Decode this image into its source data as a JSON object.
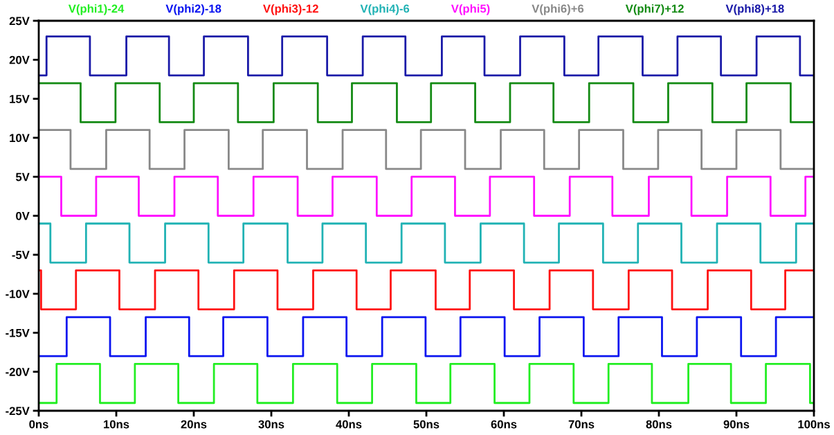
{
  "chart_data": {
    "type": "step",
    "legend": "top",
    "grid": false,
    "xlim": [
      0,
      100
    ],
    "ylim": [
      -25,
      25
    ],
    "xticks": [
      {
        "value": 0,
        "label": "0ns"
      },
      {
        "value": 10,
        "label": "10ns"
      },
      {
        "value": 20,
        "label": "20ns"
      },
      {
        "value": 30,
        "label": "30ns"
      },
      {
        "value": 40,
        "label": "40ns"
      },
      {
        "value": 50,
        "label": "50ns"
      },
      {
        "value": 60,
        "label": "60ns"
      },
      {
        "value": 70,
        "label": "70ns"
      },
      {
        "value": 80,
        "label": "80ns"
      },
      {
        "value": 90,
        "label": "90ns"
      },
      {
        "value": 100,
        "label": "100ns"
      }
    ],
    "yticks": [
      {
        "value": 25,
        "label": "25V"
      },
      {
        "value": 20,
        "label": "20V"
      },
      {
        "value": 15,
        "label": "15V"
      },
      {
        "value": 10,
        "label": "10V"
      },
      {
        "value": 5,
        "label": "5V"
      },
      {
        "value": 0,
        "label": "0V"
      },
      {
        "value": -5,
        "label": "-5V"
      },
      {
        "value": -10,
        "label": "-10V"
      },
      {
        "value": -15,
        "label": "-15V"
      },
      {
        "value": -20,
        "label": "-20V"
      },
      {
        "value": -25,
        "label": "-25V"
      }
    ],
    "series": [
      {
        "name": "V(phi1)-24",
        "color": "#22ee22",
        "x": [
          0,
          2.3,
          7.9,
          12.4,
          18.0,
          22.6,
          28.2,
          32.8,
          38.5,
          43.0,
          48.7,
          53.1,
          58.8,
          63.3,
          69.0,
          73.5,
          79.1,
          83.8,
          89.3,
          93.8,
          99.5,
          100
        ],
        "values": [
          -24,
          -19,
          -24,
          -19,
          -24,
          -19,
          -24,
          -19,
          -24,
          -19,
          -24,
          -19,
          -24,
          -19,
          -24,
          -19,
          -24,
          -19,
          -24,
          -19,
          -24,
          -24
        ]
      },
      {
        "name": "V(phi2)-18",
        "color": "#0a14f0",
        "x": [
          0,
          3.6,
          9.2,
          13.8,
          19.4,
          23.8,
          29.5,
          34.1,
          39.7,
          44.3,
          49.9,
          54.4,
          60.1,
          64.6,
          70.3,
          74.8,
          80.4,
          84.9,
          90.6,
          95.1,
          100
        ],
        "values": [
          -18,
          -13,
          -18,
          -13,
          -18,
          -13,
          -18,
          -13,
          -18,
          -13,
          -18,
          -13,
          -18,
          -13,
          -18,
          -13,
          -18,
          -13,
          -18,
          -13,
          -13
        ]
      },
      {
        "name": "V(phi3)-12",
        "color": "#ff1010",
        "x": [
          0,
          0.3,
          4.8,
          10.4,
          15.0,
          20.6,
          25.2,
          30.8,
          35.4,
          41.0,
          45.4,
          51.2,
          55.6,
          61.3,
          65.9,
          71.5,
          76.1,
          81.7,
          86.3,
          91.9,
          96.3,
          100
        ],
        "values": [
          -7,
          -12,
          -7,
          -12,
          -7,
          -12,
          -7,
          -12,
          -7,
          -12,
          -7,
          -12,
          -7,
          -12,
          -7,
          -12,
          -7,
          -12,
          -7,
          -12,
          -7,
          -7
        ]
      },
      {
        "name": "V(phi4)-6",
        "color": "#20b2b4",
        "x": [
          0,
          1.5,
          6.1,
          11.7,
          16.3,
          21.9,
          26.4,
          32.1,
          36.6,
          42.2,
          46.8,
          52.4,
          57.0,
          62.6,
          67.1,
          72.8,
          77.3,
          82.9,
          87.5,
          93.1,
          97.7,
          100
        ],
        "values": [
          -1,
          -6,
          -1,
          -6,
          -1,
          -6,
          -1,
          -6,
          -1,
          -6,
          -1,
          -6,
          -1,
          -6,
          -1,
          -6,
          -1,
          -6,
          -1,
          -6,
          -1,
          -1
        ]
      },
      {
        "name": "V(phi5)",
        "color": "#ff10ff",
        "x": [
          0,
          2.9,
          7.4,
          12.9,
          17.5,
          23.1,
          27.7,
          33.4,
          37.9,
          43.6,
          48.1,
          53.7,
          58.2,
          63.9,
          68.5,
          74.0,
          78.7,
          84.2,
          88.8,
          94.4,
          98.9,
          100
        ],
        "values": [
          5,
          0,
          5,
          0,
          5,
          0,
          5,
          0,
          5,
          0,
          5,
          0,
          5,
          0,
          5,
          0,
          5,
          0,
          5,
          0,
          5,
          5
        ]
      },
      {
        "name": "V(phi6)+6",
        "color": "#888888",
        "x": [
          0,
          4.1,
          8.7,
          14.3,
          18.8,
          24.5,
          28.9,
          34.6,
          39.2,
          44.8,
          49.3,
          55.0,
          59.6,
          65.2,
          69.7,
          75.4,
          79.9,
          85.5,
          90.0,
          95.7,
          100
        ],
        "values": [
          11,
          6,
          11,
          6,
          11,
          6,
          11,
          6,
          11,
          6,
          11,
          6,
          11,
          6,
          11,
          6,
          11,
          6,
          11,
          6,
          6
        ]
      },
      {
        "name": "V(phi7)+12",
        "color": "#138a13",
        "x": [
          0,
          5.4,
          9.9,
          15.6,
          20.0,
          25.7,
          30.3,
          36.0,
          40.4,
          46.2,
          50.6,
          56.3,
          60.8,
          66.4,
          71.0,
          76.7,
          81.2,
          86.9,
          91.3,
          97.0,
          100
        ],
        "values": [
          17,
          12,
          17,
          12,
          17,
          12,
          17,
          12,
          17,
          12,
          17,
          12,
          17,
          12,
          17,
          12,
          17,
          12,
          17,
          12,
          12
        ]
      },
      {
        "name": "V(phi8)+18",
        "color": "#1a1aa8",
        "x": [
          0,
          1.0,
          6.6,
          11.3,
          16.8,
          21.3,
          27.0,
          31.4,
          37.2,
          41.8,
          47.3,
          52.0,
          57.5,
          62.1,
          67.8,
          72.2,
          77.9,
          82.4,
          88.0,
          92.6,
          98.2,
          100
        ],
        "values": [
          18,
          23,
          18,
          23,
          18,
          23,
          18,
          23,
          18,
          23,
          18,
          23,
          18,
          23,
          18,
          23,
          18,
          23,
          18,
          23,
          18,
          18
        ]
      }
    ]
  }
}
